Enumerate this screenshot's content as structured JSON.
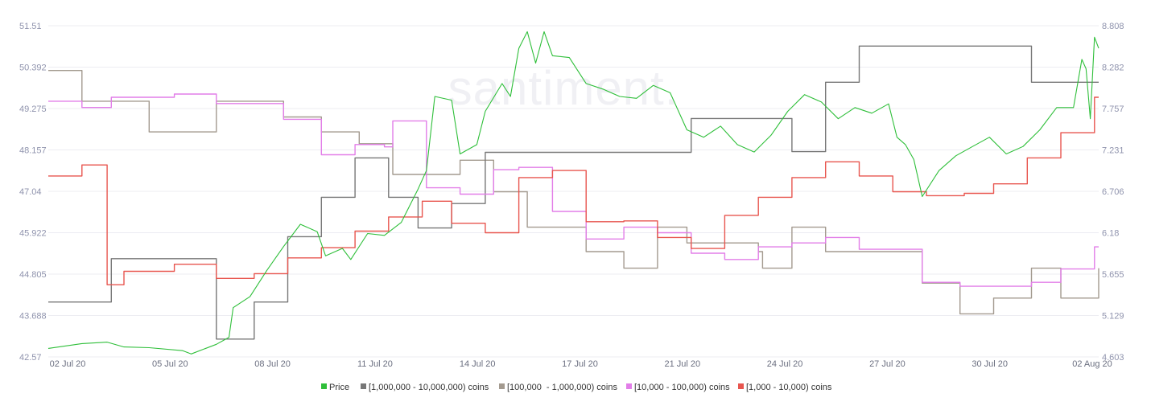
{
  "watermark": "santiment.",
  "chart_data": {
    "type": "line",
    "grid": "horizontal",
    "legend_position": "bottom-center",
    "x_tick_labels": [
      "02 Jul 20",
      "05 Jul 20",
      "08 Jul 20",
      "11 Jul 20",
      "14 Jul 20",
      "17 Jul 20",
      "21 Jul 20",
      "24 Jul 20",
      "27 Jul 20",
      "30 Jul 20",
      "02 Aug 20"
    ],
    "y_left": {
      "series": "Price",
      "ylim": [
        42.57,
        51.51
      ],
      "tick_labels": [
        "51.51",
        "50.392",
        "49.275",
        "48.157",
        "47.04",
        "45.922",
        "44.805",
        "43.688",
        "42.57"
      ]
    },
    "y_right": {
      "ylim": [
        4.603,
        8.808
      ],
      "tick_labels": [
        "8.808",
        "8.282",
        "7.757",
        "7.231",
        "6.706",
        "6.18",
        "5.655",
        "5.129",
        "4.603"
      ]
    },
    "xlim": [
      "2020-07-01T18:00",
      "2020-08-02T00:00"
    ],
    "series": [
      {
        "name": "Price",
        "color": "#2fbf3a",
        "axis": "left",
        "line": "smooth",
        "points": [
          [
            "2020-07-01T18:00",
            42.8
          ],
          [
            "2020-07-02T18:00",
            42.93
          ],
          [
            "2020-07-03T12:00",
            42.97
          ],
          [
            "2020-07-04T00:00",
            42.84
          ],
          [
            "2020-07-04T18:00",
            42.82
          ],
          [
            "2020-07-05T18:00",
            42.74
          ],
          [
            "2020-07-06T00:00",
            42.65
          ],
          [
            "2020-07-06T18:00",
            42.91
          ],
          [
            "2020-07-07T03:00",
            43.1
          ],
          [
            "2020-07-07T06:00",
            43.9
          ],
          [
            "2020-07-07T18:00",
            44.2
          ],
          [
            "2020-07-08T06:00",
            44.9
          ],
          [
            "2020-07-08T18:00",
            45.55
          ],
          [
            "2020-07-09T06:00",
            46.15
          ],
          [
            "2020-07-09T18:00",
            45.95
          ],
          [
            "2020-07-10T00:00",
            45.3
          ],
          [
            "2020-07-10T12:00",
            45.5
          ],
          [
            "2020-07-10T18:00",
            45.2
          ],
          [
            "2020-07-11T06:00",
            45.9
          ],
          [
            "2020-07-11T18:00",
            45.85
          ],
          [
            "2020-07-12T06:00",
            46.2
          ],
          [
            "2020-07-12T18:00",
            47.1
          ],
          [
            "2020-07-13T00:00",
            47.6
          ],
          [
            "2020-07-13T06:00",
            49.6
          ],
          [
            "2020-07-13T18:00",
            49.5
          ],
          [
            "2020-07-14T00:00",
            48.05
          ],
          [
            "2020-07-14T12:00",
            48.3
          ],
          [
            "2020-07-14T18:00",
            49.2
          ],
          [
            "2020-07-15T06:00",
            49.95
          ],
          [
            "2020-07-15T12:00",
            49.6
          ],
          [
            "2020-07-15T18:00",
            50.9
          ],
          [
            "2020-07-16T00:00",
            51.35
          ],
          [
            "2020-07-16T06:00",
            50.5
          ],
          [
            "2020-07-16T12:00",
            51.35
          ],
          [
            "2020-07-16T18:00",
            50.7
          ],
          [
            "2020-07-17T06:00",
            50.65
          ],
          [
            "2020-07-17T18:00",
            49.95
          ],
          [
            "2020-07-18T06:00",
            49.8
          ],
          [
            "2020-07-18T18:00",
            49.6
          ],
          [
            "2020-07-19T06:00",
            49.55
          ],
          [
            "2020-07-19T18:00",
            49.9
          ],
          [
            "2020-07-20T06:00",
            49.7
          ],
          [
            "2020-07-20T18:00",
            48.7
          ],
          [
            "2020-07-21T06:00",
            48.5
          ],
          [
            "2020-07-21T18:00",
            48.8
          ],
          [
            "2020-07-22T06:00",
            48.3
          ],
          [
            "2020-07-22T18:00",
            48.1
          ],
          [
            "2020-07-23T06:00",
            48.55
          ],
          [
            "2020-07-23T18:00",
            49.2
          ],
          [
            "2020-07-24T06:00",
            49.65
          ],
          [
            "2020-07-24T18:00",
            49.45
          ],
          [
            "2020-07-25T06:00",
            49.0
          ],
          [
            "2020-07-25T18:00",
            49.3
          ],
          [
            "2020-07-26T06:00",
            49.15
          ],
          [
            "2020-07-26T18:00",
            49.4
          ],
          [
            "2020-07-27T00:00",
            48.5
          ],
          [
            "2020-07-27T06:00",
            48.3
          ],
          [
            "2020-07-27T12:00",
            47.9
          ],
          [
            "2020-07-27T18:00",
            46.9
          ],
          [
            "2020-07-28T06:00",
            47.6
          ],
          [
            "2020-07-28T18:00",
            48.0
          ],
          [
            "2020-07-29T06:00",
            48.25
          ],
          [
            "2020-07-29T18:00",
            48.5
          ],
          [
            "2020-07-30T06:00",
            48.05
          ],
          [
            "2020-07-30T18:00",
            48.25
          ],
          [
            "2020-07-31T06:00",
            48.7
          ],
          [
            "2020-07-31T18:00",
            49.3
          ],
          [
            "2020-08-01T06:00",
            49.3
          ],
          [
            "2020-08-01T12:00",
            50.6
          ],
          [
            "2020-08-01T15:00",
            50.35
          ],
          [
            "2020-08-01T18:00",
            49.0
          ],
          [
            "2020-08-01T21:00",
            51.2
          ],
          [
            "2020-08-02T00:00",
            50.9
          ]
        ]
      },
      {
        "name": "[1,000,000 - 10,000,000) coins",
        "color": "#777777",
        "axis": "right",
        "line": "step",
        "points": [
          [
            "2020-07-01T18:00",
            5.3
          ],
          [
            "2020-07-03T15:00",
            5.85
          ],
          [
            "2020-07-06T18:00",
            4.83
          ],
          [
            "2020-07-07T21:00",
            5.3
          ],
          [
            "2020-07-08T21:00",
            6.13
          ],
          [
            "2020-07-09T21:00",
            6.63
          ],
          [
            "2020-07-10T21:00",
            7.13
          ],
          [
            "2020-07-11T21:00",
            6.63
          ],
          [
            "2020-07-12T18:00",
            6.24
          ],
          [
            "2020-07-13T18:00",
            6.55
          ],
          [
            "2020-07-14T18:00",
            7.2
          ],
          [
            "2020-07-20T21:00",
            7.63
          ],
          [
            "2020-07-23T21:00",
            7.21
          ],
          [
            "2020-07-24T21:00",
            8.09
          ],
          [
            "2020-07-25T21:00",
            8.55
          ],
          [
            "2020-07-31T00:00",
            8.09
          ],
          [
            "2020-08-02T00:00",
            8.09
          ]
        ]
      },
      {
        "name": "[100,000  - 1,000,000) coins",
        "color": "#a39a8f",
        "axis": "right",
        "line": "step",
        "points": [
          [
            "2020-07-01T18:00",
            8.24
          ],
          [
            "2020-07-02T18:00",
            7.85
          ],
          [
            "2020-07-04T18:00",
            7.46
          ],
          [
            "2020-07-06T18:00",
            7.85
          ],
          [
            "2020-07-08T18:00",
            7.65
          ],
          [
            "2020-07-09T21:00",
            7.46
          ],
          [
            "2020-07-11T00:00",
            7.31
          ],
          [
            "2020-07-12T00:00",
            6.92
          ],
          [
            "2020-07-13T00:00",
            6.92
          ],
          [
            "2020-07-14T00:00",
            7.1
          ],
          [
            "2020-07-15T00:00",
            6.7
          ],
          [
            "2020-07-16T00:00",
            6.25
          ],
          [
            "2020-07-17T18:00",
            5.94
          ],
          [
            "2020-07-18T21:00",
            5.73
          ],
          [
            "2020-07-19T21:00",
            6.25
          ],
          [
            "2020-07-20T18:00",
            6.05
          ],
          [
            "2020-07-21T21:00",
            6.05
          ],
          [
            "2020-07-22T21:00",
            5.94
          ],
          [
            "2020-07-23T00:00",
            5.73
          ],
          [
            "2020-07-23T21:00",
            6.25
          ],
          [
            "2020-07-24T21:00",
            5.94
          ],
          [
            "2020-07-27T18:00",
            5.54
          ],
          [
            "2020-07-28T21:00",
            5.15
          ],
          [
            "2020-07-29T21:00",
            5.35
          ],
          [
            "2020-07-31T00:00",
            5.73
          ],
          [
            "2020-07-31T21:00",
            5.35
          ],
          [
            "2020-08-02T00:00",
            5.73
          ]
        ]
      },
      {
        "name": "[10,000 - 100,000) coins",
        "color": "#e27ee8",
        "axis": "right",
        "line": "step",
        "points": [
          [
            "2020-07-01T18:00",
            7.85
          ],
          [
            "2020-07-02T18:00",
            7.77
          ],
          [
            "2020-07-03T15:00",
            7.9
          ],
          [
            "2020-07-05T12:00",
            7.94
          ],
          [
            "2020-07-06T18:00",
            7.82
          ],
          [
            "2020-07-08T18:00",
            7.62
          ],
          [
            "2020-07-09T21:00",
            7.17
          ],
          [
            "2020-07-10T21:00",
            7.3
          ],
          [
            "2020-07-11T18:00",
            7.27
          ],
          [
            "2020-07-12T00:00",
            7.6
          ],
          [
            "2020-07-13T00:00",
            6.75
          ],
          [
            "2020-07-14T00:00",
            6.67
          ],
          [
            "2020-07-15T00:00",
            6.98
          ],
          [
            "2020-07-15T18:00",
            7.01
          ],
          [
            "2020-07-16T18:00",
            6.45
          ],
          [
            "2020-07-17T18:00",
            6.1
          ],
          [
            "2020-07-18T21:00",
            6.25
          ],
          [
            "2020-07-19T21:00",
            6.18
          ],
          [
            "2020-07-20T21:00",
            5.92
          ],
          [
            "2020-07-21T21:00",
            5.84
          ],
          [
            "2020-07-22T21:00",
            6.0
          ],
          [
            "2020-07-23T21:00",
            6.05
          ],
          [
            "2020-07-24T21:00",
            6.12
          ],
          [
            "2020-07-25T21:00",
            5.97
          ],
          [
            "2020-07-27T18:00",
            5.55
          ],
          [
            "2020-07-28T21:00",
            5.5
          ],
          [
            "2020-07-31T00:00",
            5.55
          ],
          [
            "2020-07-31T21:00",
            5.72
          ],
          [
            "2020-08-01T21:00",
            6.0
          ],
          [
            "2020-08-02T00:00",
            6.0
          ]
        ]
      },
      {
        "name": "[1,000 - 10,000) coins",
        "color": "#e8564f",
        "axis": "right",
        "line": "step",
        "points": [
          [
            "2020-07-01T18:00",
            6.9
          ],
          [
            "2020-07-02T18:00",
            7.04
          ],
          [
            "2020-07-03T12:00",
            5.52
          ],
          [
            "2020-07-04T00:00",
            5.69
          ],
          [
            "2020-07-05T12:00",
            5.78
          ],
          [
            "2020-07-06T18:00",
            5.6
          ],
          [
            "2020-07-07T21:00",
            5.66
          ],
          [
            "2020-07-08T21:00",
            5.86
          ],
          [
            "2020-07-09T21:00",
            5.99
          ],
          [
            "2020-07-10T21:00",
            6.2
          ],
          [
            "2020-07-11T21:00",
            6.38
          ],
          [
            "2020-07-12T21:00",
            6.58
          ],
          [
            "2020-07-13T18:00",
            6.3
          ],
          [
            "2020-07-14T18:00",
            6.18
          ],
          [
            "2020-07-15T18:00",
            6.88
          ],
          [
            "2020-07-16T18:00",
            6.97
          ],
          [
            "2020-07-17T18:00",
            6.32
          ],
          [
            "2020-07-18T21:00",
            6.33
          ],
          [
            "2020-07-19T21:00",
            6.12
          ],
          [
            "2020-07-20T21:00",
            5.98
          ],
          [
            "2020-07-21T21:00",
            6.4
          ],
          [
            "2020-07-22T21:00",
            6.63
          ],
          [
            "2020-07-23T21:00",
            6.88
          ],
          [
            "2020-07-24T21:00",
            7.08
          ],
          [
            "2020-07-25T21:00",
            6.9
          ],
          [
            "2020-07-26T21:00",
            6.7
          ],
          [
            "2020-07-27T21:00",
            6.65
          ],
          [
            "2020-07-29T00:00",
            6.68
          ],
          [
            "2020-07-29T21:00",
            6.8
          ],
          [
            "2020-07-30T21:00",
            7.13
          ],
          [
            "2020-07-31T21:00",
            7.45
          ],
          [
            "2020-08-01T21:00",
            7.9
          ],
          [
            "2020-08-02T00:00",
            7.9
          ]
        ]
      }
    ]
  }
}
